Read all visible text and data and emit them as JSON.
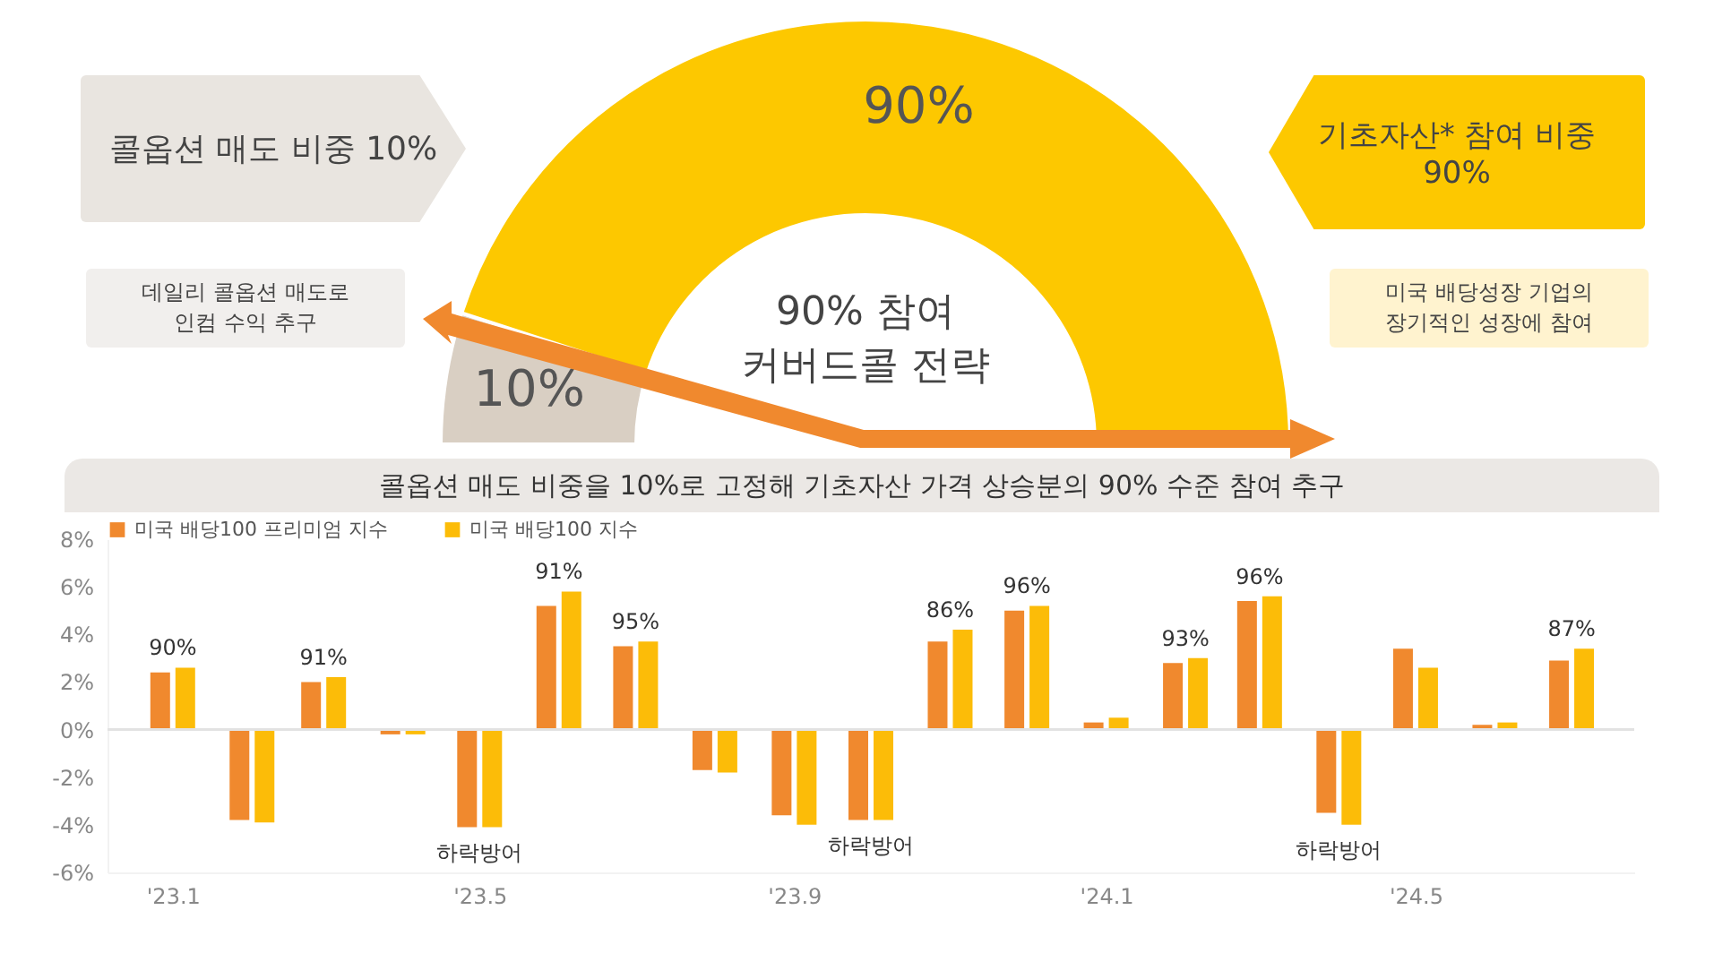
{
  "chart_data": [
    {
      "type": "donut",
      "title": "90% 참여\n커버드콜 전략",
      "categories": [
        null,
        null
      ],
      "values": [
        10,
        90
      ],
      "colors": [
        "#d9cfc3",
        "#fdc800"
      ],
      "value_labels": [
        "10%",
        "90%"
      ],
      "annotations": [
        "콜옵션 매도 비중 10%",
        "데일리 콜옵션 매도로\n인컴 수익 추구",
        "기초자산* 참여 비중\n90%",
        "미국 배당성장 기업의\n장기적인 성장에 참여"
      ]
    },
    {
      "type": "bar",
      "title": "콜옵션 매도 비중을 10%로 고정해 기초자산 가격 상승분의 90% 수준 참여 추구",
      "x": [
        "2023-01",
        "2023-02",
        "2023-03",
        "2023-04",
        "2023-05",
        "2023-06",
        "2023-07",
        "2023-08",
        "2023-09",
        "2023-10",
        "2023-11",
        "2023-12",
        "2024-01",
        "2024-02",
        "2024-03",
        "2024-04",
        "2024-05",
        "2024-06",
        "2024-07"
      ],
      "series": [
        {
          "name": "미국 배당100 프리미엄 지수",
          "color": "#f0892e",
          "values": [
            2.4,
            -3.8,
            2.0,
            -0.2,
            -4.1,
            5.2,
            3.5,
            -1.7,
            -3.6,
            -3.8,
            3.7,
            5.0,
            0.3,
            2.8,
            5.4,
            -3.5,
            3.4,
            0.2,
            2.9
          ]
        },
        {
          "name": "미국 배당100 지수",
          "color": "#fcbc08",
          "values": [
            2.6,
            -3.9,
            2.2,
            -0.2,
            -4.1,
            5.8,
            3.7,
            -1.8,
            -4.0,
            -3.8,
            4.2,
            5.2,
            0.5,
            3.0,
            5.6,
            -4.0,
            2.6,
            0.3,
            3.4
          ]
        }
      ],
      "annotations": [
        {
          "text": "90%",
          "x": "2023-01",
          "y": 2.6
        },
        {
          "text": "91%",
          "x": "2023-03",
          "y": 2.2
        },
        {
          "text": "하락방어",
          "x": "2023-05",
          "y": -4.1
        },
        {
          "text": "91%",
          "x": "2023-06",
          "y": 5.8
        },
        {
          "text": "95%",
          "x": "2023-07",
          "y": 3.7
        },
        {
          "text": "하락방어",
          "x": "2023-10",
          "y": -3.8
        },
        {
          "text": "86%",
          "x": "2023-11",
          "y": 4.2
        },
        {
          "text": "96%",
          "x": "2023-12",
          "y": 5.2
        },
        {
          "text": "93%",
          "x": "2024-02",
          "y": 3.0
        },
        {
          "text": "96%",
          "x": "2024-03",
          "y": 5.6
        },
        {
          "text": "하락방어",
          "x": "2024-04",
          "y": -4.0
        },
        {
          "text": "87%",
          "x": "2024-07",
          "y": 3.4
        }
      ],
      "xlim": [
        "2022-12-10",
        "2024-07-22"
      ],
      "xticks": [
        {
          "value": "2023-01",
          "label": "'23.1"
        },
        {
          "value": "2023-05",
          "label": "'23.5"
        },
        {
          "value": "2023-09",
          "label": "'23.9"
        },
        {
          "value": "2024-01",
          "label": "'24.1"
        },
        {
          "value": "2024-05",
          "label": "'24.5"
        }
      ],
      "ylim": [
        -6,
        8
      ],
      "yticks": [
        {
          "value": -6,
          "label": "-6%"
        },
        {
          "value": -4,
          "label": "-4%"
        },
        {
          "value": -2,
          "label": "-2%"
        },
        {
          "value": 0,
          "label": "0%"
        },
        {
          "value": 2,
          "label": "2%"
        },
        {
          "value": 4,
          "label": "4%"
        },
        {
          "value": 6,
          "label": "6%"
        },
        {
          "value": 8,
          "label": "8%"
        }
      ],
      "legend": "top",
      "ref_lines": [
        {
          "axis": "y",
          "value": 0,
          "color": "#e2e2e2"
        }
      ]
    }
  ]
}
